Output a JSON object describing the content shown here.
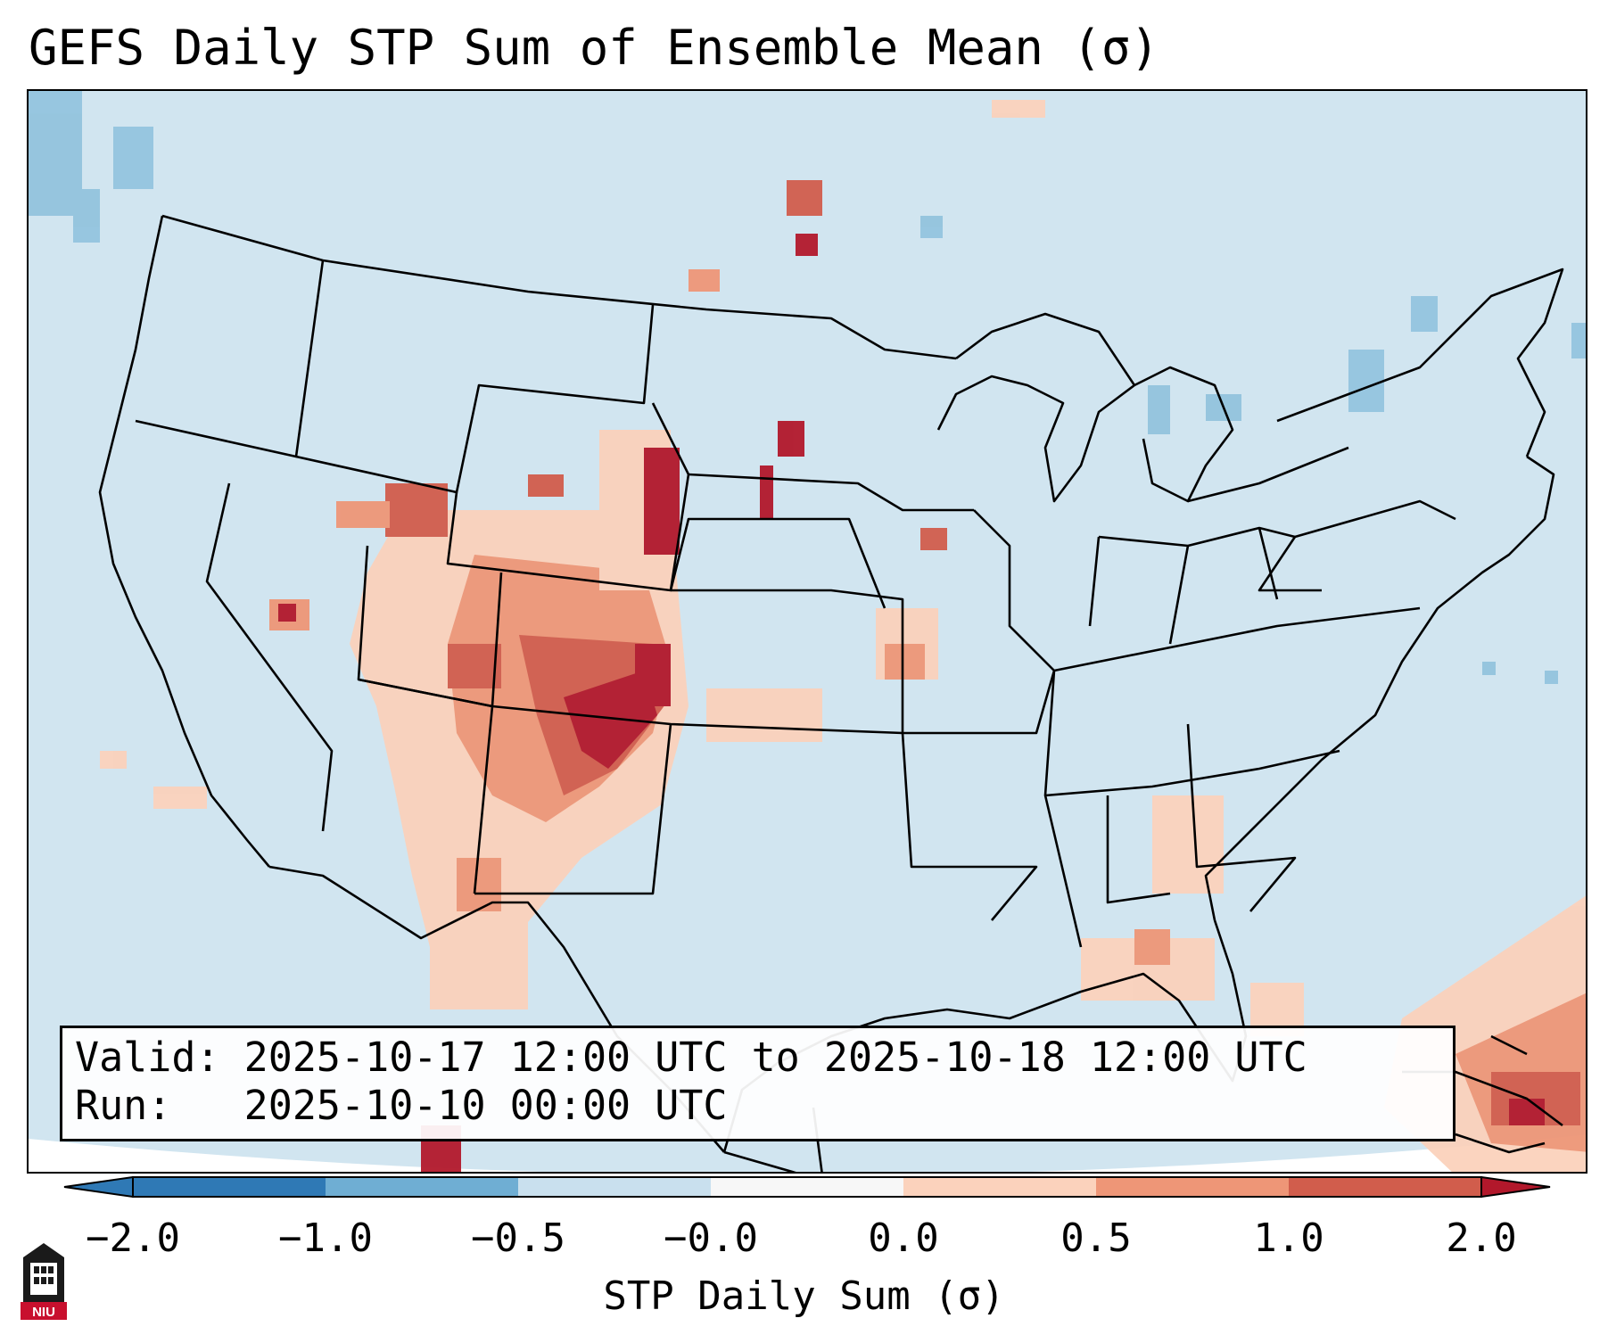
{
  "title": "GEFS Daily STP Sum of Ensemble Mean (σ)",
  "info": {
    "valid_line": "Valid: 2025-10-17 12:00 UTC to 2025-10-18 12:00 UTC",
    "run_line": "Run:   2025-10-10 00:00 UTC"
  },
  "colorbar": {
    "label": "STP Daily Sum (σ)",
    "ticks": [
      "−2.0",
      "−1.0",
      "−0.5",
      "−0.0",
      "0.0",
      "0.5",
      "1.0",
      "2.0"
    ],
    "colors": [
      "#2f79b5",
      "#6faed3",
      "#c9e0ee",
      "#f7f7f7",
      "#fbd2bc",
      "#ee9677",
      "#d15d4c",
      "#b2182b"
    ],
    "ocean_background": "#d1e5f0"
  },
  "logo": {
    "text": "NIU",
    "color": "#c8102e"
  }
}
